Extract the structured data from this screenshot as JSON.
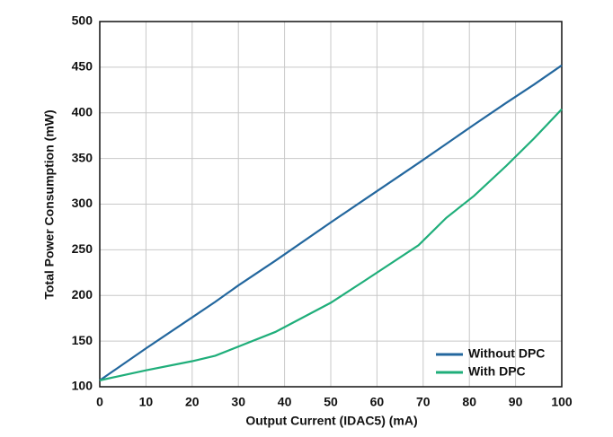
{
  "chart_data": {
    "type": "line",
    "x_label": "Output Current (IDAC5) (mA)",
    "y_label": "Total Power Consumption (mW)",
    "x": [
      0,
      10,
      20,
      25,
      30,
      38,
      50,
      57,
      69,
      75,
      81,
      88,
      94,
      100
    ],
    "series": [
      {
        "name": "Without DPC",
        "color": "#23679e",
        "values": [
          107,
          142,
          176,
          193,
          211,
          238,
          280,
          304,
          345,
          366,
          387,
          411,
          431,
          452
        ]
      },
      {
        "name": "With DPC",
        "color": "#1fae7a",
        "values": [
          107,
          118,
          128,
          134,
          144,
          160,
          192,
          215,
          255,
          285,
          309,
          342,
          372,
          404
        ]
      }
    ],
    "xlim": [
      0,
      100
    ],
    "xticks": [
      0,
      10,
      20,
      30,
      40,
      50,
      60,
      70,
      80,
      90,
      100
    ],
    "ylim": [
      100,
      500
    ],
    "yticks": [
      100,
      150,
      200,
      250,
      300,
      350,
      400,
      450,
      500
    ],
    "grid": true,
    "legend": "lower right"
  }
}
